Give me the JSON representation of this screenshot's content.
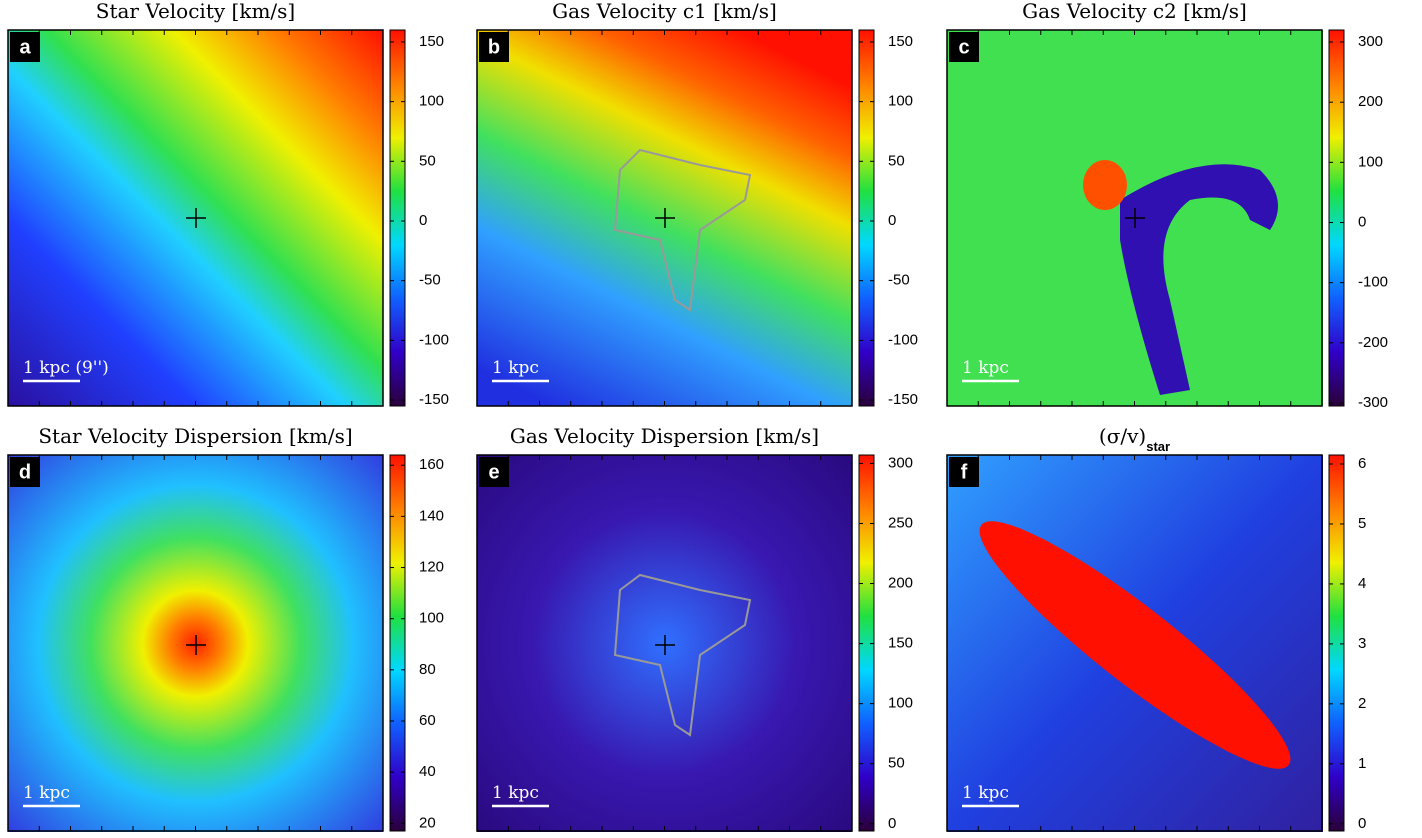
{
  "colormap": [
    "#2a0038",
    "#3000c8",
    "#1060ff",
    "#00d8ff",
    "#20e040",
    "#f0f000",
    "#ff8000",
    "#ff1000"
  ],
  "chart_data": [
    {
      "type": "map",
      "title": "Star Velocity [km/s]",
      "panel": "a",
      "scale_bar": "1 kpc (9'')",
      "ylim": [
        -155,
        160
      ],
      "yticks": [
        150,
        100,
        50,
        0,
        -50,
        -100,
        -150
      ]
    },
    {
      "type": "map",
      "title": "Gas Velocity c1 [km/s]",
      "panel": "b",
      "scale_bar": "1 kpc",
      "ylim": [
        -155,
        160
      ],
      "yticks": [
        150,
        100,
        50,
        0,
        -50,
        -100,
        -150
      ]
    },
    {
      "type": "map",
      "title": "Gas Velocity c2 [km/s]",
      "panel": "c",
      "scale_bar": "1 kpc",
      "ylim": [
        -305,
        320
      ],
      "yticks": [
        300,
        200,
        100,
        0,
        -100,
        -200,
        -300
      ]
    },
    {
      "type": "map",
      "title": "Star Velocity Dispersion [km/s]",
      "panel": "d",
      "scale_bar": "1 kpc",
      "ylim": [
        17,
        164
      ],
      "yticks": [
        160,
        140,
        120,
        100,
        80,
        60,
        40,
        20
      ]
    },
    {
      "type": "map",
      "title": "Gas Velocity Dispersion [km/s]",
      "panel": "e",
      "scale_bar": "1 kpc",
      "ylim": [
        -6,
        307
      ],
      "yticks": [
        300,
        250,
        200,
        150,
        100,
        50,
        0
      ]
    },
    {
      "type": "map",
      "title": "(σ/v)",
      "title_subscript": "star",
      "panel": "f",
      "scale_bar": "1 kpc",
      "ylim": [
        -0.12,
        6.15
      ],
      "yticks": [
        6,
        5,
        4,
        3,
        2,
        1,
        0
      ]
    }
  ]
}
